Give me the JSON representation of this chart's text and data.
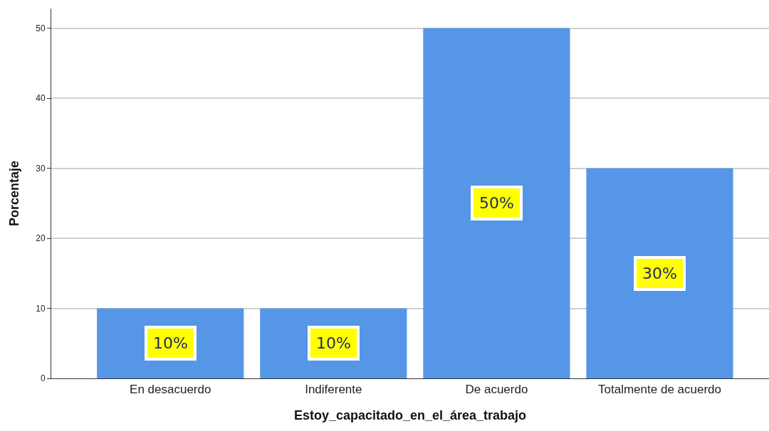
{
  "chart_data": {
    "type": "bar",
    "xlabel": "Estoy_capacitado_en_el_área_trabajo",
    "ylabel": "Porcentaje",
    "categories": [
      "En desacuerdo",
      "Indiferente",
      "De acuerdo",
      "Totalmente de acuerdo"
    ],
    "values": [
      10,
      10,
      50,
      30
    ],
    "color": "#5596e6",
    "value_labels": [
      "10%",
      "10%",
      "50%",
      "30%"
    ],
    "ylim": [
      0,
      52.8
    ],
    "yticks": [
      0,
      10,
      20,
      30,
      40,
      50
    ],
    "grid": "y",
    "legend": false
  }
}
